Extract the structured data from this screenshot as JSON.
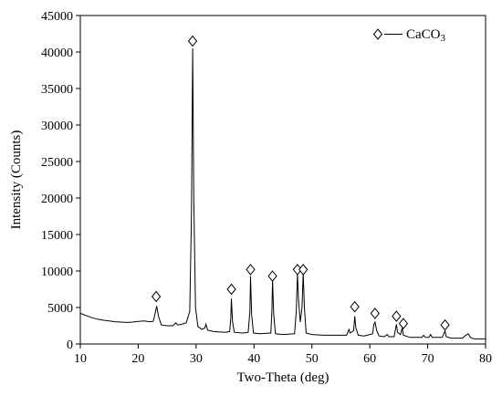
{
  "chart_data": {
    "type": "line",
    "title": "",
    "xlabel": "Two-Theta (deg)",
    "ylabel": "Intensity (Counts)",
    "xlim": [
      10,
      80
    ],
    "ylim": [
      0,
      45000
    ],
    "x_ticks": [
      10,
      20,
      30,
      40,
      50,
      60,
      70,
      80
    ],
    "y_ticks": [
      0,
      5000,
      10000,
      15000,
      20000,
      25000,
      30000,
      35000,
      40000,
      45000
    ],
    "grid": false,
    "legend": {
      "placement": "top-right",
      "entries": [
        {
          "marker": "diamond-open",
          "line": "solid",
          "label": "CaCO",
          "subscript": "3"
        }
      ]
    },
    "series": [
      {
        "color": "#000000",
        "points": [
          [
            10,
            4200
          ],
          [
            11,
            3900
          ],
          [
            12,
            3600
          ],
          [
            13,
            3400
          ],
          [
            14,
            3250
          ],
          [
            15,
            3150
          ],
          [
            16,
            3050
          ],
          [
            17,
            3000
          ],
          [
            18,
            2950
          ],
          [
            19,
            3000
          ],
          [
            20,
            3100
          ],
          [
            21,
            3150
          ],
          [
            22,
            3050
          ],
          [
            22.6,
            3100
          ],
          [
            23.0,
            4500
          ],
          [
            23.2,
            5200
          ],
          [
            23.5,
            3800
          ],
          [
            24,
            2600
          ],
          [
            25,
            2500
          ],
          [
            26,
            2500
          ],
          [
            26.5,
            2900
          ],
          [
            26.8,
            2600
          ],
          [
            27.5,
            2700
          ],
          [
            28.3,
            2900
          ],
          [
            28.9,
            4500
          ],
          [
            29.2,
            18000
          ],
          [
            29.4,
            40500
          ],
          [
            29.6,
            20000
          ],
          [
            29.9,
            5000
          ],
          [
            30.3,
            2400
          ],
          [
            31,
            2000
          ],
          [
            31.5,
            2200
          ],
          [
            31.7,
            2700
          ],
          [
            32.0,
            1900
          ],
          [
            33,
            1700
          ],
          [
            35,
            1600
          ],
          [
            35.8,
            1700
          ],
          [
            36.0,
            3600
          ],
          [
            36.1,
            6200
          ],
          [
            36.3,
            3000
          ],
          [
            36.6,
            1600
          ],
          [
            38,
            1500
          ],
          [
            39.0,
            1600
          ],
          [
            39.3,
            4500
          ],
          [
            39.4,
            9300
          ],
          [
            39.6,
            4000
          ],
          [
            39.9,
            1500
          ],
          [
            41,
            1400
          ],
          [
            42.9,
            1500
          ],
          [
            43.1,
            4500
          ],
          [
            43.2,
            8700
          ],
          [
            43.4,
            4000
          ],
          [
            43.7,
            1400
          ],
          [
            45,
            1300
          ],
          [
            47,
            1400
          ],
          [
            47.3,
            4500
          ],
          [
            47.5,
            9600
          ],
          [
            47.7,
            6000
          ],
          [
            48.0,
            3000
          ],
          [
            48.3,
            5000
          ],
          [
            48.5,
            9700
          ],
          [
            48.7,
            5000
          ],
          [
            49.0,
            1500
          ],
          [
            50,
            1300
          ],
          [
            52,
            1200
          ],
          [
            54,
            1200
          ],
          [
            56,
            1200
          ],
          [
            56.4,
            2000
          ],
          [
            56.6,
            1500
          ],
          [
            57.2,
            1800
          ],
          [
            57.4,
            3800
          ],
          [
            57.6,
            2200
          ],
          [
            58.0,
            1200
          ],
          [
            59,
            1100
          ],
          [
            60.5,
            1400
          ],
          [
            60.7,
            2700
          ],
          [
            60.9,
            3000
          ],
          [
            61.2,
            1800
          ],
          [
            61.6,
            1100
          ],
          [
            62.5,
            1000
          ],
          [
            63.0,
            1300
          ],
          [
            63.3,
            1000
          ],
          [
            64.2,
            1000
          ],
          [
            64.6,
            2700
          ],
          [
            64.8,
            1600
          ],
          [
            65.3,
            1300
          ],
          [
            65.6,
            2200
          ],
          [
            65.8,
            1200
          ],
          [
            67,
            900
          ],
          [
            69.0,
            900
          ],
          [
            69.3,
            1200
          ],
          [
            69.6,
            900
          ],
          [
            70.2,
            900
          ],
          [
            70.5,
            1300
          ],
          [
            70.8,
            900
          ],
          [
            72.5,
            900
          ],
          [
            72.8,
            1400
          ],
          [
            73.0,
            1800
          ],
          [
            73.2,
            1000
          ],
          [
            74,
            800
          ],
          [
            76,
            800
          ],
          [
            76.6,
            1200
          ],
          [
            77.0,
            1400
          ],
          [
            77.4,
            900
          ],
          [
            78,
            700
          ],
          [
            80,
            700
          ]
        ]
      }
    ],
    "annotations": {
      "marker": "diamond-open",
      "points": [
        [
          23.1,
          6500
        ],
        [
          29.4,
          41500
        ],
        [
          36.1,
          7500
        ],
        [
          39.4,
          10200
        ],
        [
          43.2,
          9300
        ],
        [
          47.5,
          10200
        ],
        [
          48.5,
          10200
        ],
        [
          57.4,
          5100
        ],
        [
          60.9,
          4200
        ],
        [
          64.6,
          3800
        ],
        [
          65.8,
          2800
        ],
        [
          73.0,
          2600
        ]
      ]
    }
  }
}
